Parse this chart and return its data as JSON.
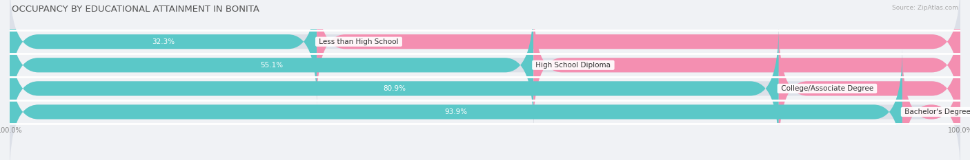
{
  "title": "OCCUPANCY BY EDUCATIONAL ATTAINMENT IN BONITA",
  "source": "Source: ZipAtlas.com",
  "categories": [
    "Less than High School",
    "High School Diploma",
    "College/Associate Degree",
    "Bachelor's Degree or higher"
  ],
  "owner_pct": [
    32.3,
    55.1,
    80.9,
    93.9
  ],
  "renter_pct": [
    67.7,
    44.9,
    19.1,
    6.1
  ],
  "owner_color": "#5bc8c8",
  "renter_color": "#f48fb1",
  "bar_height": 0.62,
  "bg_color": "#f0f2f5",
  "bar_bg_color": "#dce0e8",
  "title_fontsize": 9.5,
  "label_fontsize": 7.5,
  "cat_fontsize": 7.5,
  "tick_fontsize": 7.0,
  "source_fontsize": 6.5,
  "x_min": 0,
  "x_max": 100
}
